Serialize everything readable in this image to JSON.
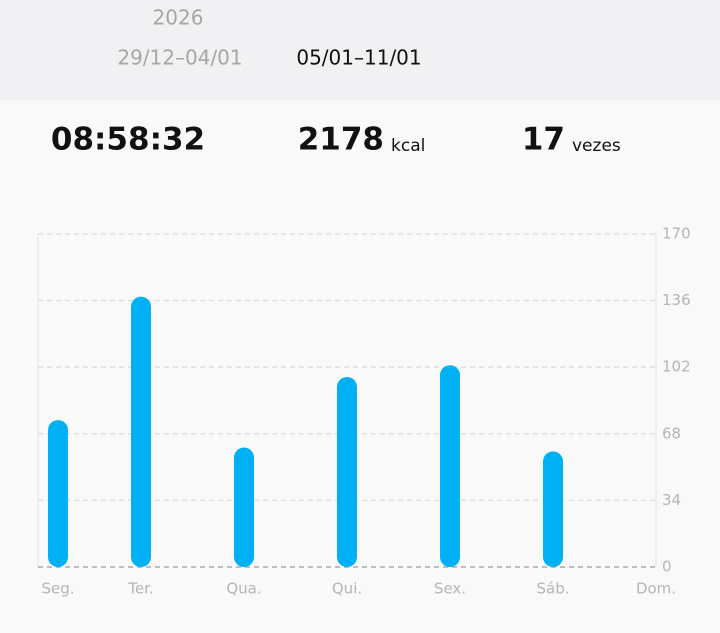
{
  "header": {
    "year": "2026",
    "weeks": [
      "29/12–04/01",
      "05/01–11/01"
    ]
  },
  "stats": {
    "duration": "08:58:32",
    "calories": {
      "value": "2178",
      "unit": "kcal"
    },
    "count": {
      "value": "17",
      "unit": "vezes"
    }
  },
  "chart_data": {
    "type": "bar",
    "categories": [
      "Seg.",
      "Ter.",
      "Qua.",
      "Qui.",
      "Sex.",
      "Sáb.",
      "Dom."
    ],
    "values": [
      75,
      138,
      61,
      97,
      103,
      59,
      null
    ],
    "color": "#00b0f5",
    "ylim": [
      0,
      170
    ],
    "yticks": [
      0,
      34,
      68,
      102,
      136,
      170
    ],
    "grid": true
  }
}
